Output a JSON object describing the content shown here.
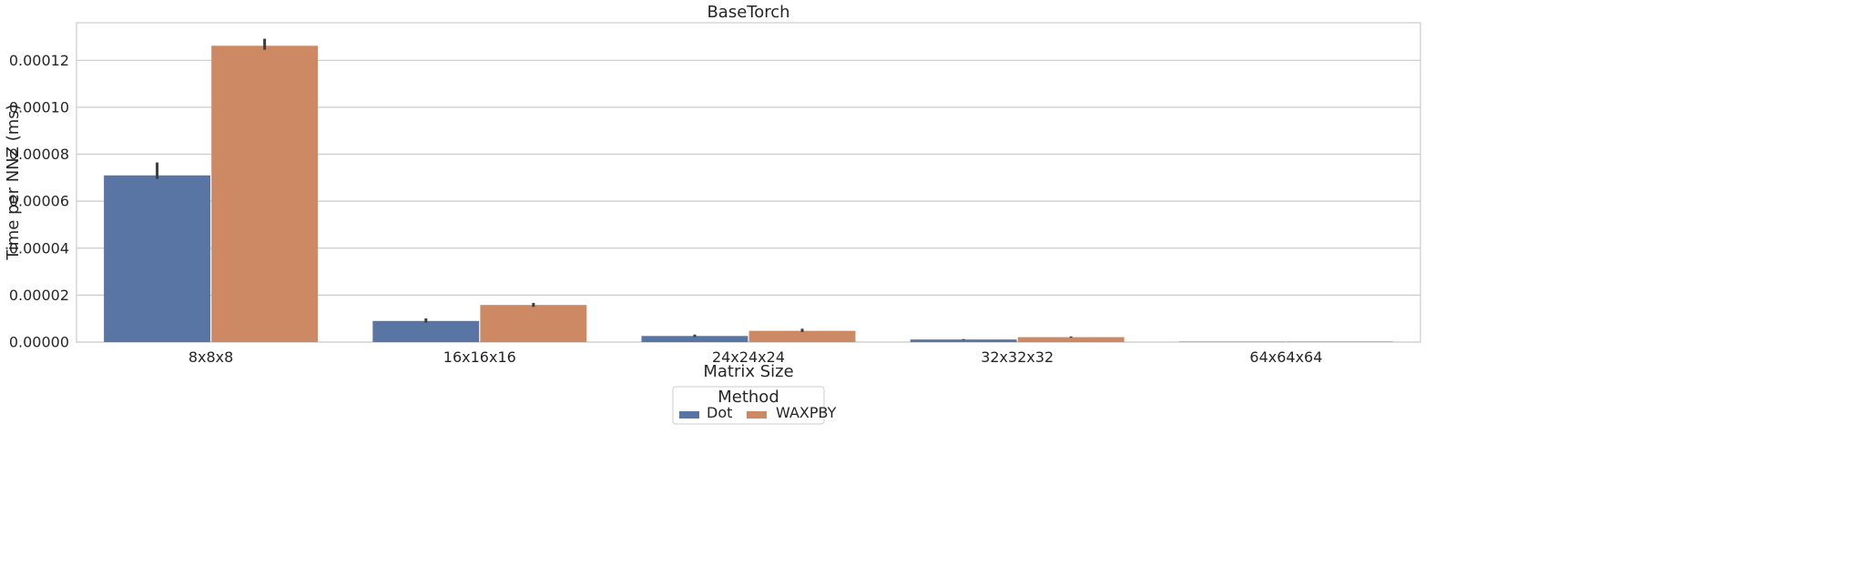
{
  "chart_data": {
    "type": "bar",
    "title": "BaseTorch",
    "xlabel": "Matrix Size",
    "ylabel": "Time per NNZ (ms)",
    "categories": [
      "8x8x8",
      "16x16x16",
      "24x24x24",
      "32x32x32",
      "64x64x64"
    ],
    "ylim": [
      0,
      0.000136
    ],
    "yticks": [
      "0.00000",
      "0.00002",
      "0.00004",
      "0.00006",
      "0.00008",
      "0.00010",
      "0.00012"
    ],
    "grid": "horizontal",
    "legend": {
      "title": "Method",
      "placement": "bottom-center"
    },
    "series": [
      {
        "name": "Dot",
        "color": "#5975a4",
        "values": [
          7.1e-05,
          9e-06,
          2.6e-06,
          1.1e-06,
          1.5e-07
        ],
        "error_low": [
          6.95e-05,
          8.3e-06,
          2.2e-06,
          9e-07,
          1e-07
        ],
        "error_high": [
          7.65e-05,
          1.01e-05,
          3.2e-06,
          1.3e-06,
          2e-07
        ]
      },
      {
        "name": "WAXPBY",
        "color": "#cc8963",
        "values": [
          0.0001262,
          1.58e-05,
          4.8e-06,
          2.1e-06,
          2.5e-07
        ],
        "error_low": [
          0.0001245,
          1.5e-05,
          4.3e-06,
          1.9e-06,
          2e-07
        ],
        "error_high": [
          0.0001292,
          1.67e-05,
          5.7e-06,
          2.4e-06,
          3e-07
        ]
      }
    ]
  }
}
